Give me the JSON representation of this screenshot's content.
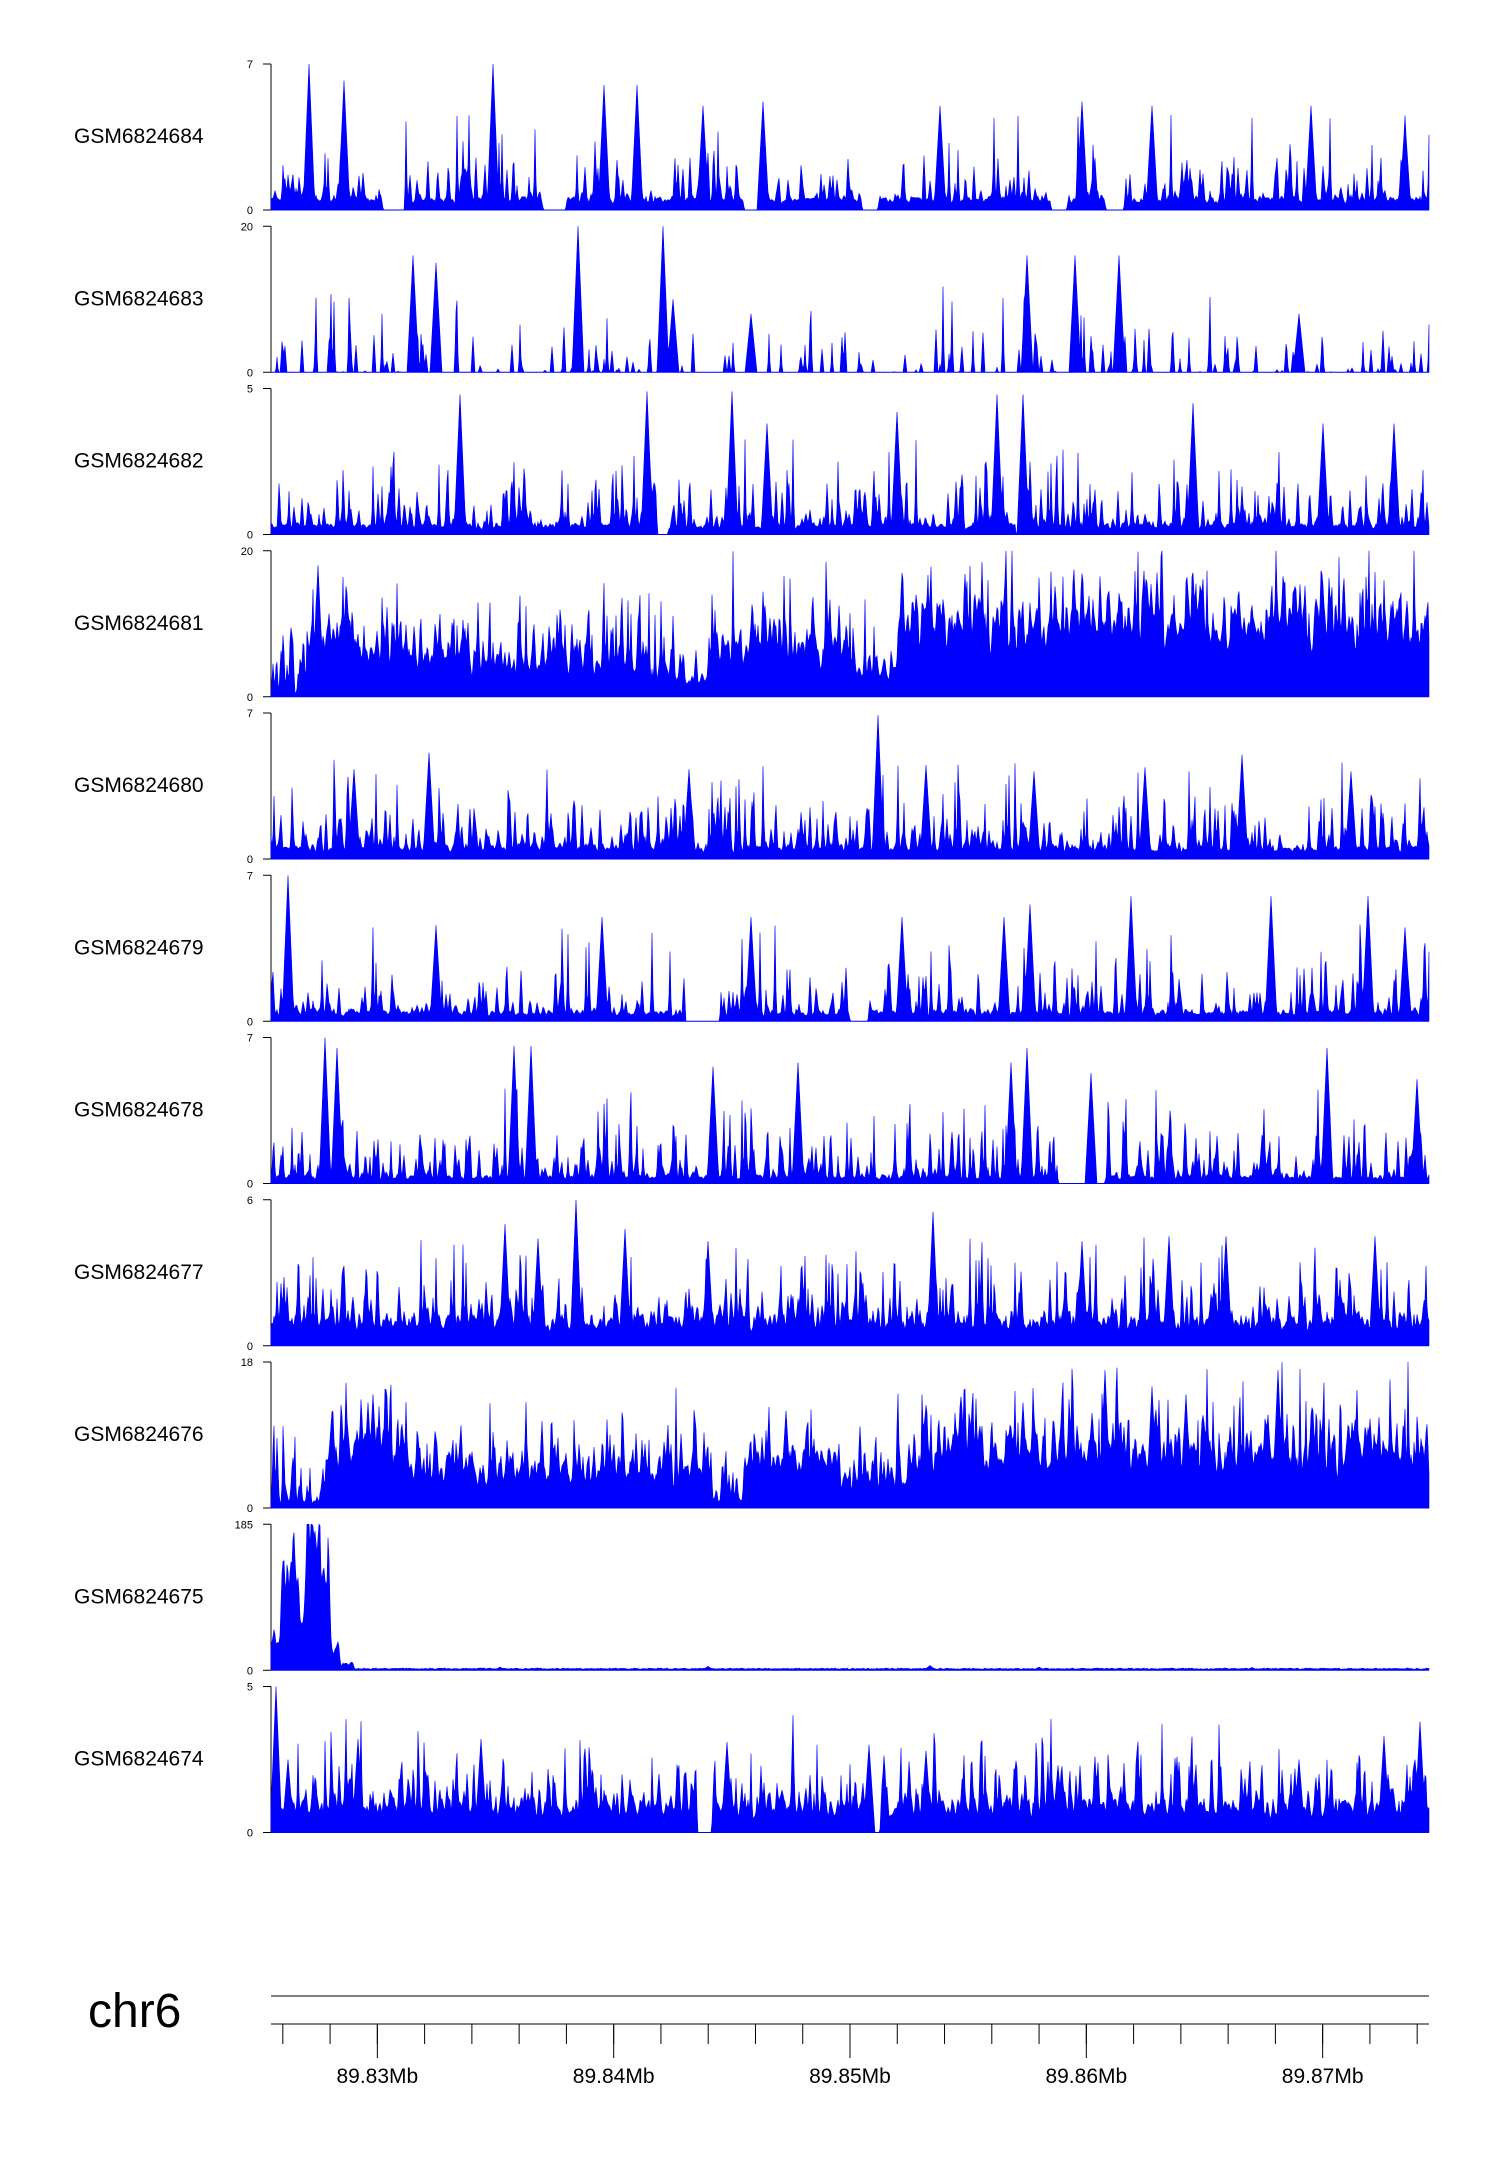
{
  "chart_data": {
    "type": "area",
    "fill_color": "#0000FF",
    "axis_color": "#000000",
    "x_range_mb": [
      89.8255,
      89.8745
    ],
    "tracks": [
      {
        "name": "GSM6824684",
        "ymax": 7,
        "ymin": 0,
        "base_level": 0.5,
        "peak_density": 0.33,
        "gaps": [
          [
            89.8302,
            89.8312
          ],
          [
            89.837,
            89.838
          ],
          [
            89.8455,
            89.8463
          ],
          [
            89.8505,
            89.8512
          ],
          [
            89.8585,
            89.8592
          ],
          [
            89.8608,
            89.8616
          ]
        ],
        "peaks": [
          [
            89.8271,
            7.0
          ],
          [
            89.8286,
            6.2
          ],
          [
            89.8349,
            7.0
          ],
          [
            89.8396,
            6.0
          ],
          [
            89.841,
            6.0
          ],
          [
            89.8438,
            5.0
          ],
          [
            89.8463,
            5.2
          ],
          [
            89.8538,
            5.0
          ],
          [
            89.8598,
            5.2
          ],
          [
            89.8628,
            5.0
          ],
          [
            89.8695,
            5.0
          ],
          [
            89.8735,
            4.3
          ]
        ]
      },
      {
        "name": "GSM6824683",
        "ymax": 20,
        "ymin": 0,
        "base_level": 0.0,
        "peak_density": 0.18,
        "gaps": [],
        "peaks": [
          [
            89.8315,
            16.0
          ],
          [
            89.8325,
            15.0
          ],
          [
            89.8385,
            20.0
          ],
          [
            89.8421,
            20.0
          ],
          [
            89.8425,
            10.0
          ],
          [
            89.8458,
            8.0
          ],
          [
            89.8575,
            16.0
          ],
          [
            89.8595,
            16.0
          ],
          [
            89.8614,
            16.0
          ],
          [
            89.869,
            8.0
          ]
        ]
      },
      {
        "name": "GSM6824682",
        "ymax": 5,
        "ymin": 0,
        "base_level": 0.3,
        "peak_density": 0.38,
        "gaps": [
          [
            89.8418,
            89.8423
          ],
          [
            89.857,
            89.8575
          ]
        ],
        "peaks": [
          [
            89.8335,
            4.8
          ],
          [
            89.8414,
            4.9
          ],
          [
            89.845,
            4.9
          ],
          [
            89.8465,
            3.8
          ],
          [
            89.852,
            4.2
          ],
          [
            89.8562,
            4.8
          ],
          [
            89.8573,
            4.8
          ],
          [
            89.8645,
            4.5
          ],
          [
            89.87,
            3.8
          ],
          [
            89.873,
            3.8
          ]
        ]
      },
      {
        "name": "GSM6824681",
        "ymax": 20,
        "ymin": 0,
        "base_level": 4.0,
        "peak_density": 0.55,
        "gaps": [],
        "segments": [
          [
            89.8255,
            89.827,
            0.4
          ],
          [
            89.827,
            89.829,
            8.0
          ],
          [
            89.829,
            89.833,
            5.0
          ],
          [
            89.833,
            89.8415,
            4.0
          ],
          [
            89.8415,
            89.844,
            2.0
          ],
          [
            89.844,
            89.85,
            6.0
          ],
          [
            89.85,
            89.852,
            3.0
          ],
          [
            89.852,
            89.8745,
            9.0
          ]
        ],
        "peaks": [
          [
            89.8275,
            18.0
          ],
          [
            89.8275,
            17.0
          ],
          [
            89.83,
            9.0
          ],
          [
            89.846,
            10.0
          ],
          [
            89.8528,
            14.0
          ],
          [
            89.8595,
            14.0
          ],
          [
            89.863,
            17.0
          ],
          [
            89.8645,
            17.0
          ],
          [
            89.868,
            13.0
          ]
        ]
      },
      {
        "name": "GSM6824680",
        "ymax": 7,
        "ymin": 0,
        "base_level": 0.5,
        "peak_density": 0.4,
        "gaps": [],
        "peaks": [
          [
            89.829,
            4.3
          ],
          [
            89.8322,
            5.1
          ],
          [
            89.8432,
            4.3
          ],
          [
            89.8512,
            6.9
          ],
          [
            89.8532,
            4.5
          ],
          [
            89.8578,
            4.2
          ],
          [
            89.8625,
            4.4
          ],
          [
            89.8666,
            5.0
          ],
          [
            89.8712,
            4.2
          ]
        ]
      },
      {
        "name": "GSM6824679",
        "ymax": 7,
        "ymin": 0,
        "base_level": 0.4,
        "peak_density": 0.35,
        "gaps": [
          [
            89.843,
            89.8445
          ],
          [
            89.85,
            89.8508
          ]
        ],
        "peaks": [
          [
            89.8262,
            7.0
          ],
          [
            89.8325,
            4.6
          ],
          [
            89.8395,
            5.0
          ],
          [
            89.8458,
            5.0
          ],
          [
            89.8522,
            5.0
          ],
          [
            89.8565,
            5.0
          ],
          [
            89.8576,
            5.6
          ],
          [
            89.8619,
            6.0
          ],
          [
            89.8678,
            6.0
          ],
          [
            89.8719,
            6.0
          ],
          [
            89.8735,
            4.5
          ]
        ]
      },
      {
        "name": "GSM6824678",
        "ymax": 7,
        "ymin": 0,
        "base_level": 0.3,
        "peak_density": 0.38,
        "gaps": [
          [
            89.8588,
            89.8608
          ]
        ],
        "peaks": [
          [
            89.8278,
            7.0
          ],
          [
            89.8283,
            6.5
          ],
          [
            89.8358,
            6.6
          ],
          [
            89.8365,
            6.6
          ],
          [
            89.8442,
            5.6
          ],
          [
            89.8478,
            5.8
          ],
          [
            89.8568,
            5.8
          ],
          [
            89.8575,
            6.5
          ],
          [
            89.8602,
            5.3
          ],
          [
            89.8702,
            6.5
          ],
          [
            89.874,
            5.0
          ]
        ]
      },
      {
        "name": "GSM6824677",
        "ymax": 6,
        "ymin": 0,
        "base_level": 0.9,
        "peak_density": 0.45,
        "gaps": [],
        "peaks": [
          [
            89.8354,
            5.0
          ],
          [
            89.8368,
            4.4
          ],
          [
            89.8384,
            6.0
          ],
          [
            89.8405,
            4.8
          ],
          [
            89.844,
            4.3
          ],
          [
            89.8535,
            5.5
          ],
          [
            89.8598,
            4.3
          ],
          [
            89.8635,
            4.5
          ],
          [
            89.8659,
            4.5
          ],
          [
            89.8722,
            4.5
          ]
        ]
      },
      {
        "name": "GSM6824676",
        "ymax": 18,
        "ymin": 0,
        "base_level": 3.5,
        "peak_density": 0.55,
        "gaps": [],
        "segments": [
          [
            89.8255,
            89.8278,
            0.6
          ],
          [
            89.8278,
            89.8315,
            6.0
          ],
          [
            89.8315,
            89.844,
            4.0
          ],
          [
            89.844,
            89.8455,
            1.0
          ],
          [
            89.8455,
            89.8495,
            5.0
          ],
          [
            89.8495,
            89.8525,
            3.0
          ],
          [
            89.8525,
            89.8745,
            6.0
          ]
        ],
        "peaks": [
          [
            89.8298,
            14.0
          ],
          [
            89.8296,
            13.0
          ],
          [
            89.8473,
            12.0
          ],
          [
            89.8573,
            13.0
          ],
          [
            89.8608,
            17.0
          ],
          [
            89.8628,
            15.0
          ],
          [
            89.8642,
            14.0
          ],
          [
            89.8681,
            17.0
          ],
          [
            89.87,
            10.0
          ],
          [
            89.872,
            11.0
          ]
        ]
      },
      {
        "name": "GSM6824675",
        "ymax": 185,
        "ymin": 0,
        "base_level": 1.5,
        "peak_density": 0.0,
        "gaps": [],
        "segments": [
          [
            89.8255,
            89.8259,
            40.0
          ],
          [
            89.8259,
            89.8264,
            120.0
          ],
          [
            89.8264,
            89.8267,
            140.0
          ],
          [
            89.8267,
            89.8269,
            55.0
          ],
          [
            89.8269,
            89.8272,
            175.0
          ],
          [
            89.8272,
            89.8276,
            185.0
          ],
          [
            89.8276,
            89.828,
            120.0
          ],
          [
            89.828,
            89.8284,
            30.0
          ],
          [
            89.8284,
            89.829,
            8.0
          ],
          [
            89.829,
            89.8745,
            2.0
          ]
        ],
        "peaks": [
          [
            89.8352,
            4.0
          ],
          [
            89.844,
            5.0
          ],
          [
            89.8534,
            6.0
          ],
          [
            89.858,
            4.0
          ],
          [
            89.867,
            3.5
          ]
        ]
      },
      {
        "name": "GSM6824674",
        "ymax": 5,
        "ymin": 0,
        "base_level": 0.8,
        "peak_density": 0.45,
        "gaps": [
          [
            89.8435,
            89.8442
          ],
          [
            89.8508,
            89.8513
          ]
        ],
        "peaks": [
          [
            89.8257,
            5.0
          ],
          [
            89.8262,
            2.5
          ],
          [
            89.8292,
            3.2
          ],
          [
            89.8344,
            3.2
          ],
          [
            89.8448,
            3.1
          ],
          [
            89.8508,
            3.0
          ],
          [
            89.8532,
            2.8
          ],
          [
            89.8588,
            2.3
          ],
          [
            89.869,
            2.5
          ],
          [
            89.8726,
            3.3
          ],
          [
            89.8741,
            3.8
          ]
        ]
      }
    ],
    "chromosome": "chr6",
    "x_ticks_mb": [
      89.83,
      89.84,
      89.85,
      89.86,
      89.87
    ],
    "x_tick_labels": [
      "89.83Mb",
      "89.84Mb",
      "89.85Mb",
      "89.86Mb",
      "89.87Mb"
    ],
    "minor_tick_step_mb": 0.002
  }
}
